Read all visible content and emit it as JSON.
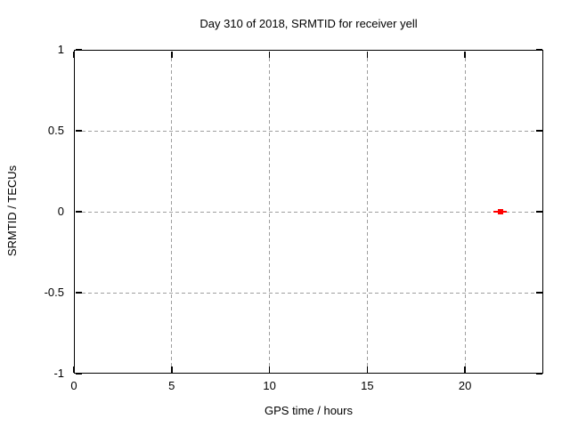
{
  "chart_data": {
    "type": "scatter",
    "title": "Day 310 of 2018, SRMTID for receiver yell",
    "xlabel": "GPS time / hours",
    "ylabel": "SRMTID / TECUs",
    "xlim": [
      0,
      24
    ],
    "ylim": [
      -1,
      1
    ],
    "x_ticks": [
      0,
      5,
      10,
      15,
      20
    ],
    "x_tick_labels": [
      "0",
      "5",
      "10",
      "15",
      "20"
    ],
    "y_ticks": [
      1,
      0.5,
      0,
      -0.5,
      -1
    ],
    "y_tick_labels": [
      "1",
      "0.5",
      "0",
      "-0.5",
      "-1"
    ],
    "grid": true,
    "grid_style": "dashed",
    "legend": false,
    "series": [
      {
        "name": "SRMTID",
        "marker": "filled-square-with-horizontal-errorbar",
        "color": "#ff0000",
        "points": [
          {
            "x": 21.8,
            "y": 0.0
          }
        ]
      }
    ],
    "colors": {
      "background": "#ffffff",
      "axis": "#000000",
      "grid": "#9e9e9e",
      "text": "#000000",
      "marker": "#ff0000"
    }
  }
}
